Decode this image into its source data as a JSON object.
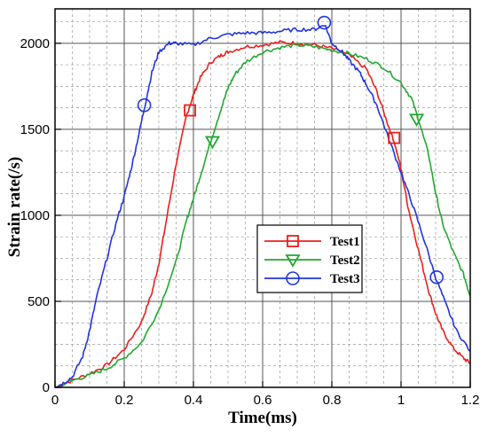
{
  "chart_data": {
    "type": "line",
    "title": "",
    "xlabel": "Time(ms)",
    "ylabel": "Strain rate(/s)",
    "xlim": [
      0,
      1.2
    ],
    "ylim": [
      0,
      2200
    ],
    "x_ticks": [
      "0",
      "0.2",
      "0.4",
      "0.6",
      "0.8",
      "1",
      "1.2"
    ],
    "y_ticks": [
      "0",
      "500",
      "1000",
      "1500",
      "2000"
    ],
    "x_tick_values": [
      0,
      0.2,
      0.4,
      0.6,
      0.8,
      1.0,
      1.2
    ],
    "y_tick_values": [
      0,
      500,
      1000,
      1500,
      2000
    ],
    "grid": true,
    "legend_position": "center-right",
    "series": [
      {
        "name": "Test1",
        "color": "#e8201e",
        "marker": "square",
        "x": [
          0,
          0.05,
          0.1,
          0.15,
          0.2,
          0.25,
          0.28,
          0.3,
          0.32,
          0.35,
          0.38,
          0.4,
          0.42,
          0.45,
          0.48,
          0.5,
          0.55,
          0.6,
          0.65,
          0.7,
          0.75,
          0.8,
          0.85,
          0.9,
          0.93,
          0.96,
          0.98,
          1.0,
          1.02,
          1.05,
          1.08,
          1.1,
          1.12,
          1.15,
          1.18,
          1.2
        ],
        "y": [
          0,
          40,
          80,
          130,
          220,
          380,
          550,
          720,
          950,
          1300,
          1580,
          1700,
          1800,
          1890,
          1930,
          1950,
          1980,
          1990,
          2005,
          2000,
          1990,
          1970,
          1930,
          1850,
          1720,
          1540,
          1430,
          1270,
          1050,
          800,
          560,
          430,
          330,
          230,
          170,
          140
        ],
        "marker_x": [
          0.39,
          0.98
        ],
        "marker_y": [
          1610,
          1450
        ]
      },
      {
        "name": "Test2",
        "color": "#21a82f",
        "marker": "triangle-down",
        "x": [
          0,
          0.05,
          0.1,
          0.15,
          0.2,
          0.25,
          0.3,
          0.35,
          0.38,
          0.4,
          0.42,
          0.45,
          0.48,
          0.5,
          0.52,
          0.55,
          0.6,
          0.65,
          0.7,
          0.75,
          0.8,
          0.85,
          0.9,
          0.95,
          1.0,
          1.03,
          1.05,
          1.08,
          1.1,
          1.12,
          1.15,
          1.18,
          1.2
        ],
        "y": [
          0,
          40,
          70,
          110,
          170,
          260,
          450,
          730,
          970,
          1100,
          1230,
          1430,
          1620,
          1740,
          1820,
          1890,
          1950,
          1975,
          1990,
          1980,
          1960,
          1940,
          1910,
          1860,
          1770,
          1680,
          1560,
          1350,
          1130,
          950,
          790,
          660,
          530
        ],
        "marker_x": [
          0.455,
          1.045
        ],
        "marker_y": [
          1430,
          1560
        ]
      },
      {
        "name": "Test3",
        "color": "#2234e0",
        "marker": "circle",
        "x": [
          0,
          0.02,
          0.05,
          0.08,
          0.1,
          0.12,
          0.15,
          0.18,
          0.2,
          0.22,
          0.24,
          0.26,
          0.28,
          0.3,
          0.33,
          0.35,
          0.4,
          0.45,
          0.5,
          0.55,
          0.6,
          0.65,
          0.7,
          0.75,
          0.78,
          0.8,
          0.83,
          0.85,
          0.88,
          0.9,
          0.93,
          0.96,
          1.0,
          1.03,
          1.06,
          1.1,
          1.13,
          1.16,
          1.2
        ],
        "y": [
          0,
          20,
          60,
          180,
          330,
          520,
          750,
          980,
          1110,
          1270,
          1450,
          1640,
          1830,
          1950,
          2000,
          2000,
          1990,
          2030,
          2050,
          2060,
          2060,
          2070,
          2080,
          2080,
          2110,
          2000,
          1950,
          1900,
          1830,
          1760,
          1640,
          1470,
          1250,
          1080,
          900,
          640,
          480,
          330,
          210
        ],
        "marker_x": [
          0.258,
          0.778,
          1.103
        ],
        "marker_y": [
          1640,
          2120,
          640
        ]
      }
    ]
  }
}
